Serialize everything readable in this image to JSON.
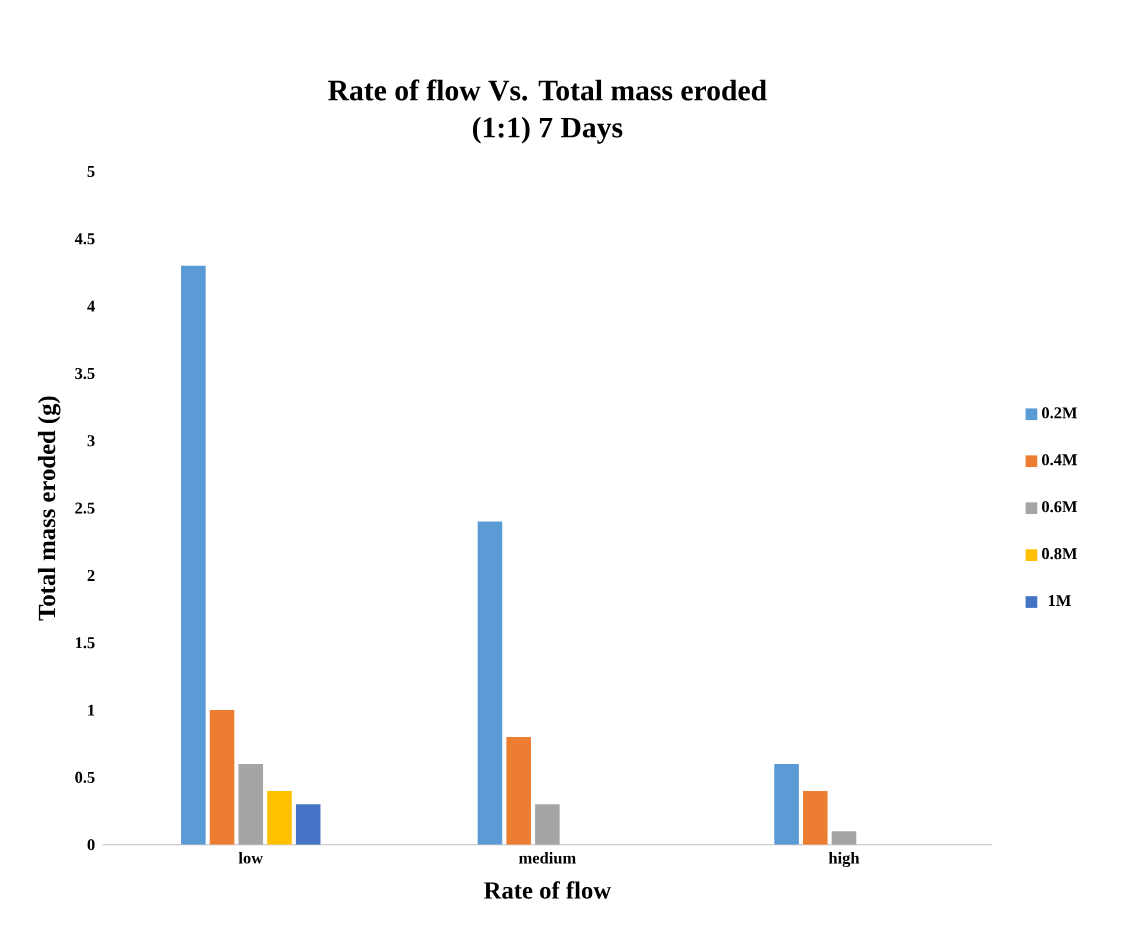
{
  "chart_data": {
    "type": "bar",
    "title": "Rate of flow Vs. Total mass eroded\n(1:1) 7 Days",
    "xlabel": "Rate of flow",
    "ylabel": "Total mass eroded (g)",
    "categories": [
      "low",
      "medium",
      "high"
    ],
    "series": [
      {
        "name": "0.2M",
        "color": "#5b9bd5",
        "values": [
          4.3,
          2.4,
          0.6
        ]
      },
      {
        "name": "0.4M",
        "color": "#ed7d31",
        "values": [
          1.0,
          0.8,
          0.4
        ]
      },
      {
        "name": "0.6M",
        "color": "#a5a5a5",
        "values": [
          0.6,
          0.3,
          0.1
        ]
      },
      {
        "name": "0.8M",
        "color": "#ffc000",
        "values": [
          0.4,
          0,
          0
        ]
      },
      {
        "name": "1M",
        "color": "#4472c4",
        "values": [
          0.3,
          0,
          0
        ]
      }
    ],
    "ylim": [
      0,
      5
    ],
    "yticks": [
      0,
      0.5,
      1,
      1.5,
      2,
      2.5,
      3,
      3.5,
      4,
      4.5,
      5
    ],
    "grid": false,
    "legend": "right"
  }
}
